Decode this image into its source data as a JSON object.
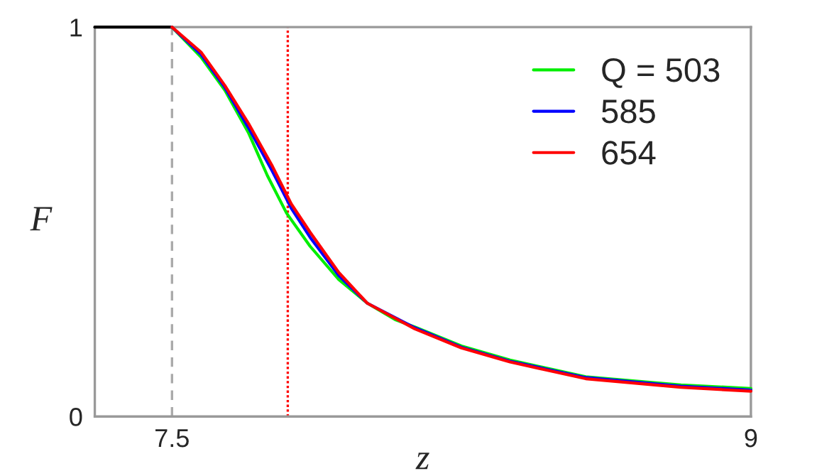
{
  "chart_data": {
    "type": "line",
    "xlabel": "z",
    "ylabel": "F",
    "xlim": [
      7.3,
      9
    ],
    "xticks": [
      7.5,
      9
    ],
    "ylim": [
      0,
      1
    ],
    "yticks": [
      0,
      1
    ],
    "grid": false,
    "legend": "top right",
    "series": [
      {
        "color": "#000000",
        "x": [
          7.3,
          7.5
        ],
        "values": [
          1,
          1
        ]
      },
      {
        "name": "Q = 503",
        "color": "#00ee00",
        "x": [
          7.5,
          7.575,
          7.637,
          7.698,
          7.747,
          7.797,
          7.858,
          7.932,
          8.006,
          8.08,
          8.129,
          8.25,
          8.376,
          8.572,
          8.819,
          9.0
        ],
        "values": [
          1,
          0.923,
          0.838,
          0.729,
          0.619,
          0.522,
          0.437,
          0.352,
          0.291,
          0.248,
          0.23,
          0.181,
          0.145,
          0.102,
          0.081,
          0.072
        ]
      },
      {
        "name": "585",
        "color": "#0000ff",
        "x": [
          7.5,
          7.575,
          7.637,
          7.698,
          7.76,
          7.809,
          7.858,
          7.932,
          8.006,
          8.129,
          8.25,
          8.376,
          8.572,
          8.819,
          9.0
        ],
        "values": [
          1,
          0.93,
          0.845,
          0.742,
          0.63,
          0.535,
          0.46,
          0.362,
          0.291,
          0.228,
          0.178,
          0.142,
          0.1,
          0.078,
          0.068
        ]
      },
      {
        "name": "654",
        "color": "#ff0000",
        "x": [
          7.5,
          7.575,
          7.637,
          7.698,
          7.76,
          7.809,
          7.858,
          7.932,
          8.006,
          8.129,
          8.25,
          8.376,
          8.572,
          8.819,
          9.0
        ],
        "values": [
          1,
          0.936,
          0.85,
          0.753,
          0.643,
          0.546,
          0.473,
          0.37,
          0.291,
          0.225,
          0.176,
          0.14,
          0.097,
          0.075,
          0.065
        ]
      }
    ],
    "ref_lines": [
      {
        "axis": "x",
        "value": 7.5,
        "color": "#aaaaaa",
        "line_style": "dashed"
      },
      {
        "axis": "x",
        "value": 7.8,
        "color": "#ff0000",
        "line_style": "dotted"
      }
    ]
  }
}
